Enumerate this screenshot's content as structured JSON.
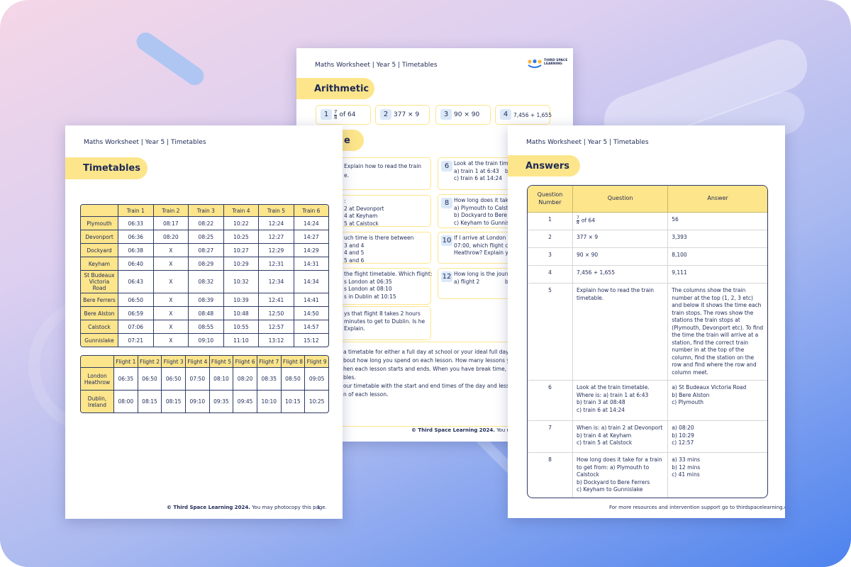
{
  "left_page": {
    "header": "Maths Worksheet | Year 5 | Timetables",
    "section": "Timetables",
    "train_table": {
      "columns": [
        "Train 1",
        "Train 2",
        "Train 3",
        "Train 4",
        "Train 5",
        "Train 6"
      ],
      "rows": [
        [
          "Plymouth",
          "06:33",
          "08:17",
          "08:22",
          "10:22",
          "12:24",
          "14:24"
        ],
        [
          "Devonport",
          "06:36",
          "08:20",
          "08:25",
          "10:25",
          "12:27",
          "14:27"
        ],
        [
          "Dockyard",
          "06:38",
          "X",
          "08:27",
          "10:27",
          "12:29",
          "14:29"
        ],
        [
          "Keyham",
          "06:40",
          "X",
          "08:29",
          "10:29",
          "12:31",
          "14:31"
        ],
        [
          "St Budeaux Victoria Road",
          "06:43",
          "X",
          "08:32",
          "10:32",
          "12:34",
          "14:34"
        ],
        [
          "Bere Ferrers",
          "06:50",
          "X",
          "08:39",
          "10:39",
          "12:41",
          "14:41"
        ],
        [
          "Bere Alston",
          "06:59",
          "X",
          "08:48",
          "10:48",
          "12:50",
          "14:50"
        ],
        [
          "Calstock",
          "07:06",
          "X",
          "08:55",
          "10:55",
          "12:57",
          "14:57"
        ],
        [
          "Gunnislake",
          "07:21",
          "X",
          "09:10",
          "11:10",
          "13:12",
          "15:12"
        ]
      ]
    },
    "flight_table": {
      "columns": [
        "Flight 1",
        "Flight 2",
        "Flight 3",
        "Flight 4",
        "Flight 5",
        "Flight 6",
        "Flight 7",
        "Flight 8",
        "Flight 9"
      ],
      "rows": [
        [
          "London Heathrow",
          "06:35",
          "06:50",
          "06:50",
          "07:50",
          "08:10",
          "08:20",
          "08:35",
          "08:50",
          "09:05"
        ],
        [
          "Dublin, Ireland",
          "08:00",
          "08:15",
          "08:15",
          "09:10",
          "09:35",
          "09:45",
          "10:10",
          "10:15",
          "10:25"
        ]
      ]
    },
    "footer": {
      "copyright": "© Third Space Learning 2024.",
      "note": "You may photocopy this page.",
      "page": "1"
    }
  },
  "middle_page": {
    "header": "Maths Worksheet | Year 5 | Timetables",
    "logo_text": "THIRD SPACE LEARNING",
    "section_1": "Arithmetic",
    "arithmetic": [
      {
        "number": "1",
        "fraction": {
          "numerator": "7",
          "denominator": "8"
        },
        "text": "of 64"
      },
      {
        "number": "2",
        "text": "377 × 9"
      },
      {
        "number": "3",
        "text": "90 × 90"
      },
      {
        "number": "4",
        "text": "7,456 + 1,655"
      }
    ],
    "section_2": "e",
    "left_boxes": [
      [
        "Explain how to read the train",
        "e."
      ],
      [
        ":",
        "2 at Devonport",
        "4 at Keyham",
        "5 at Calstock"
      ],
      [
        "uch time is there between",
        "3 and 4",
        "4 and 5",
        "5 and 6"
      ],
      [
        "the flight timetable. Which flight:",
        "s London at 06:35",
        "s London at 08:10",
        "s in Dublin at 10:15"
      ],
      [
        "ys that flight 8 takes 2 hours",
        "minutes to get to Dublin. Is he",
        "Explain."
      ]
    ],
    "right_boxes": [
      {
        "number": "6",
        "lines": [
          "Look at the train timet",
          "a) train 1 at 6:43",
          "c) train 6 at 14:24"
        ],
        "side": "b"
      },
      {
        "number": "8",
        "lines": [
          "How long does it take fo",
          "a) Plymouth to Calstock",
          "b) Dockyard to Bere Ferrers",
          "c) Keyham to Gunnislake"
        ]
      },
      {
        "number": "10",
        "lines": [
          "If I arrive at London He",
          "07:00, which flight cou",
          "Heathrow? Explain yo"
        ]
      },
      {
        "number": "12",
        "lines": [
          "How long is the journe",
          "a) flight 2"
        ],
        "side": "b) fligh"
      }
    ],
    "task_lines": [
      "a timetable for either a full day at school or your ideal full day at sch",
      "bout how long you spend on each lesson. How many lessons you ha",
      "hen each lesson starts and ends. When you have break time, lunch t",
      "bles.",
      "our timetable with the start and end times of the day and lessons. A",
      "n of each lesson."
    ],
    "footer": {
      "copyright": "© Third Space Learning 2024.",
      "note": "You may ph"
    }
  },
  "right_page": {
    "header": "Maths Worksheet | Year 5 | Timetables",
    "section": "Answers",
    "answers": {
      "headers": [
        "Question Number",
        "Question",
        "Answer"
      ],
      "rows": [
        {
          "number": "1",
          "question": {
            "numerator": "7",
            "denominator": "8",
            "text": "of 64"
          },
          "answer": "56"
        },
        {
          "number": "2",
          "question": "377 × 9",
          "answer": "3,393"
        },
        {
          "number": "3",
          "question": "90 × 90",
          "answer": "8,100"
        },
        {
          "number": "4",
          "question": "7,456 + 1,655",
          "answer": "9,111"
        },
        {
          "number": "5",
          "question": "Explain how to read the train timetable.",
          "answer": "The columns show the train number at the top (1, 2, 3 etc) and below it shows the time each train stops. The rows show the stations the train stops at (Plymouth, Devonport etc). To find the time the train will arrive at a station, find the correct train number in at the top of the column, find the station on the row and find where the row and column meet."
        },
        {
          "number": "6",
          "question": [
            "Look at the train timetable. Where is: a) train 1 at 6:43",
            "b) train 3 at 08:48",
            "c) train 6 at 14:24"
          ],
          "answer": [
            "a) St Budeaux Victoria Road",
            "b) Bere Alston",
            "c) Plymouth"
          ]
        },
        {
          "number": "7",
          "question": [
            "When is: a) train 2 at Devonport",
            "b) train 4 at Keyham",
            "c) train 5 at Calstock"
          ],
          "answer": [
            "a) 08:20",
            "b) 10:29",
            "c) 12:57"
          ]
        },
        {
          "number": "8",
          "question": [
            "How long does it take for a train to get from: a) Plymouth to Calstock",
            "b) Dockyard to Bere Ferrers",
            "c) Keyham to Gunnislake"
          ],
          "answer": [
            "a) 33 mins",
            "b) 12 mins",
            "c) 41 mins"
          ]
        }
      ]
    },
    "footer": "For more resources and intervention support go to thirdspacelearning.com"
  }
}
